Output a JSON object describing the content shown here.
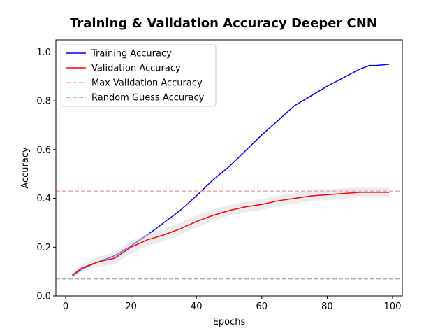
{
  "chart_data": {
    "type": "line",
    "title": "Training & Validation Accuracy Deeper CNN",
    "xlabel": "Epochs",
    "ylabel": "Accuracy",
    "xlim": [
      -3,
      103
    ],
    "ylim": [
      0.0,
      1.05
    ],
    "xticks": [
      0,
      20,
      40,
      60,
      80,
      100
    ],
    "xtick_labels": [
      "0",
      "20",
      "40",
      "60",
      "80",
      "100"
    ],
    "yticks": [
      0.0,
      0.2,
      0.4,
      0.6,
      0.8,
      1.0
    ],
    "ytick_labels": [
      "0.0",
      "0.2",
      "0.4",
      "0.6",
      "0.8",
      "1.0"
    ],
    "grid": false,
    "legend_position": "top-left",
    "series": [
      {
        "name": "Training Accuracy",
        "color": "#0000ff",
        "style": "solid",
        "x": [
          2,
          5,
          10,
          15,
          20,
          25,
          30,
          35,
          40,
          45,
          50,
          55,
          60,
          65,
          70,
          75,
          80,
          85,
          90,
          93,
          95,
          99
        ],
        "y": [
          0.08,
          0.11,
          0.14,
          0.165,
          0.205,
          0.25,
          0.3,
          0.35,
          0.41,
          0.475,
          0.53,
          0.595,
          0.66,
          0.72,
          0.78,
          0.82,
          0.86,
          0.895,
          0.93,
          0.945,
          0.945,
          0.95
        ]
      },
      {
        "name": "Validation Accuracy",
        "color": "#ff0000",
        "style": "solid",
        "x": [
          2,
          5,
          10,
          15,
          20,
          25,
          30,
          35,
          40,
          45,
          50,
          55,
          60,
          65,
          70,
          75,
          80,
          85,
          90,
          95,
          99
        ],
        "y": [
          0.085,
          0.115,
          0.14,
          0.155,
          0.2,
          0.23,
          0.25,
          0.275,
          0.305,
          0.33,
          0.35,
          0.365,
          0.375,
          0.39,
          0.4,
          0.41,
          0.415,
          0.42,
          0.425,
          0.425,
          0.425
        ],
        "band_halfwidth": [
          0.01,
          0.015,
          0.02,
          0.025,
          0.025,
          0.025,
          0.025,
          0.025,
          0.025,
          0.025,
          0.022,
          0.022,
          0.022,
          0.022,
          0.022,
          0.022,
          0.022,
          0.022,
          0.02,
          0.02,
          0.018
        ]
      },
      {
        "name": "Max Validation Accuracy",
        "color": "#f4a6a6",
        "style": "dashed",
        "hline": 0.43
      },
      {
        "name": "Random Guess Accuracy",
        "color": "#aaaaaa",
        "style": "dashed",
        "hline": 0.07
      }
    ]
  }
}
